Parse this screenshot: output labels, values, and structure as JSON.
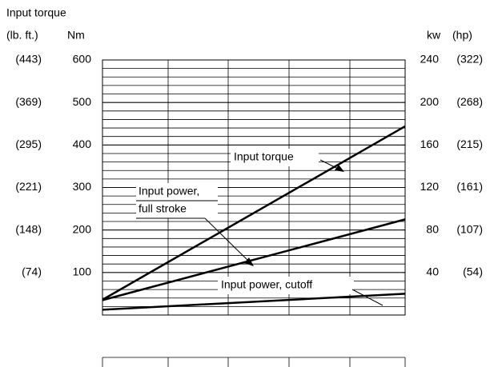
{
  "chart_data": {
    "type": "line",
    "axis_title": "Input torque",
    "y_unit_alt": "(lb. ft.)",
    "y_unit": "Nm",
    "y2_unit": "kw",
    "y2_unit_alt": "(hp)",
    "x": [
      0,
      1
    ],
    "xlim": [
      0,
      1
    ],
    "ylim": [
      0,
      600
    ],
    "yticks": [
      100,
      200,
      300,
      400,
      500,
      600
    ],
    "yticks_alt": [
      "(74)",
      "(148)",
      "(221)",
      "(295)",
      "(369)",
      "(443)"
    ],
    "y2lim": [
      0,
      240
    ],
    "y2ticks": [
      40,
      80,
      120,
      160,
      200,
      240
    ],
    "y2ticks_alt": [
      "(54)",
      "(107)",
      "(161)",
      "(215)",
      "(268)",
      "(322)"
    ],
    "grid": true,
    "series": [
      {
        "name": "Input torque",
        "color": "#000000",
        "values": [
          36,
          444
        ]
      },
      {
        "name": "Input power, full stroke",
        "color": "#000000",
        "axis": "y2",
        "values": [
          14,
          90
        ]
      },
      {
        "name": "Input power, cutoff",
        "color": "#000000",
        "axis": "y2",
        "values": [
          5,
          20
        ]
      }
    ],
    "annotations": [
      "Input torque",
      "Input power,",
      "full stroke",
      "Input power, cutoff"
    ]
  }
}
